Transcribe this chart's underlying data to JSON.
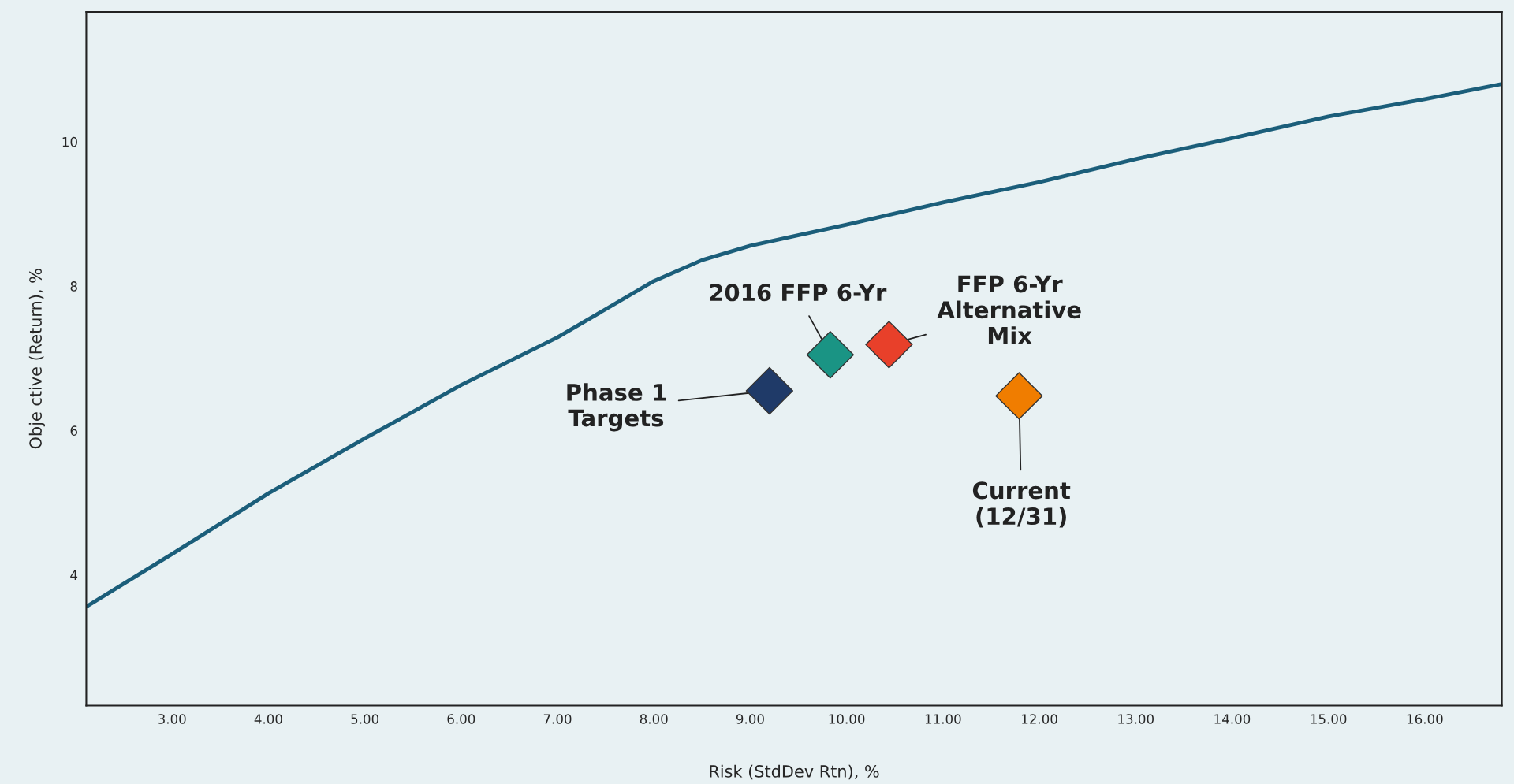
{
  "chart_data": {
    "type": "line",
    "xlabel": "Risk (StdDev Rtn), %",
    "ylabel": "Obje ctive (Return), %",
    "xlim": [
      2.11,
      16.8
    ],
    "ylim": [
      2.19,
      11.8
    ],
    "xticks": [
      {
        "value": 3,
        "label": "3.00"
      },
      {
        "value": 4,
        "label": "4.00"
      },
      {
        "value": 5,
        "label": "5.00"
      },
      {
        "value": 6,
        "label": "6.00"
      },
      {
        "value": 7,
        "label": "7.00"
      },
      {
        "value": 8,
        "label": "8.00"
      },
      {
        "value": 9,
        "label": "9.00"
      },
      {
        "value": 10,
        "label": "10.00"
      },
      {
        "value": 11,
        "label": "11.00"
      },
      {
        "value": 12,
        "label": "12.00"
      },
      {
        "value": 13,
        "label": "13.00"
      },
      {
        "value": 14,
        "label": "14.00"
      },
      {
        "value": 15,
        "label": "15.00"
      },
      {
        "value": 16,
        "label": "16.00"
      }
    ],
    "yticks": [
      4,
      6,
      8,
      10
    ],
    "grid": false,
    "legend": false,
    "series": [
      {
        "color": "#1b5e7a",
        "marker": "none",
        "line_style": "solid",
        "x": [
          2.11,
          3,
          4,
          5,
          6,
          7,
          8,
          8.5,
          9,
          10,
          11,
          12,
          13,
          14,
          15,
          16,
          16.8
        ],
        "values": [
          3.56,
          4.29,
          5.13,
          5.89,
          6.63,
          7.29,
          8.07,
          8.36,
          8.56,
          8.85,
          9.16,
          9.44,
          9.76,
          10.05,
          10.35,
          10.59,
          10.8
        ]
      },
      {
        "type": "scatter",
        "color": "#1f3a68",
        "marker": "diamond",
        "x": [
          9.2
        ],
        "values": [
          6.55
        ]
      },
      {
        "type": "scatter",
        "color": "#1a9484",
        "marker": "diamond",
        "x": [
          9.83
        ],
        "values": [
          7.05
        ]
      },
      {
        "type": "scatter",
        "color": "#e8402a",
        "marker": "diamond",
        "x": [
          10.44
        ],
        "values": [
          7.19
        ]
      },
      {
        "type": "scatter",
        "color": "#f07d00",
        "marker": "diamond",
        "x": [
          11.79
        ],
        "values": [
          6.48
        ]
      }
    ],
    "annotations": [
      {
        "text": "Phase 1\nTargets",
        "x": 9.2,
        "y": 6.55
      },
      {
        "text": "2016 FFP 6-Yr",
        "x": 9.83,
        "y": 7.05
      },
      {
        "text": "FFP 6-Yr\nAlternative\nMix",
        "x": 10.44,
        "y": 7.19
      },
      {
        "text": "Current\n(12/31)",
        "x": 11.79,
        "y": 6.48
      }
    ]
  }
}
